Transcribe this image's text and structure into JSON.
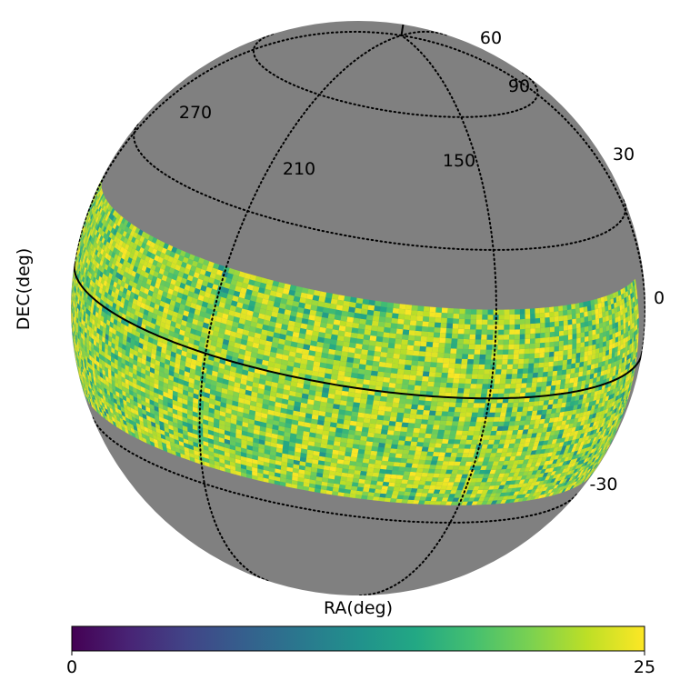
{
  "chart_data": {
    "type": "heatmap",
    "projection": "orthographic",
    "xlabel": "RA(deg)",
    "ylabel": "DEC(deg)",
    "meridian_labels": [
      "270",
      "210",
      "150",
      "90"
    ],
    "parallel_labels": [
      "60",
      "30",
      "0",
      "-30"
    ],
    "ra_lines_deg": [
      270,
      210,
      150,
      90,
      30
    ],
    "dec_lines_deg": [
      60,
      30,
      0,
      -30
    ],
    "footprint": {
      "ra_range_deg": [
        100,
        300
      ],
      "dec_range_deg": [
        -25,
        18
      ]
    },
    "colorbar": {
      "colormap": "viridis",
      "min": 0,
      "max": 25,
      "tick_labels": [
        "0",
        "25"
      ]
    },
    "background_color": "#808080",
    "graticule": "dotted",
    "equator_line": "solid"
  }
}
